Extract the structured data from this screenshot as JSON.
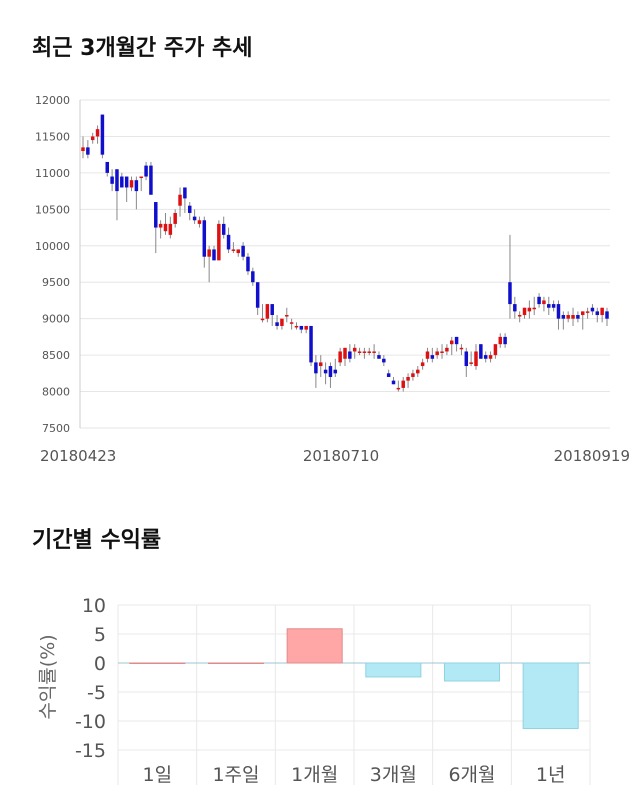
{
  "section1": {
    "title": "최근 3개월간 주가 추세"
  },
  "section2": {
    "title": "기간별 수익률"
  },
  "chart_data": [
    {
      "type": "candlestick",
      "title": "최근 3개월간 주가 추세",
      "ylim": [
        7500,
        12000
      ],
      "yticks": [
        7500,
        8000,
        8500,
        9000,
        9500,
        10000,
        10500,
        11000,
        11500,
        12000
      ],
      "xticks": [
        "20180423",
        "20180710",
        "20180919"
      ],
      "grid": true,
      "colors": {
        "up": "#dd1111",
        "down": "#1010cc",
        "wick": "#888888"
      },
      "candles": [
        [
          11300,
          11500,
          11200,
          11350
        ],
        [
          11350,
          11450,
          11200,
          11250
        ],
        [
          11450,
          11550,
          11400,
          11500
        ],
        [
          11500,
          11650,
          11400,
          11600
        ],
        [
          11800,
          11800,
          11200,
          11250
        ],
        [
          11150,
          11150,
          10950,
          11000
        ],
        [
          10950,
          11050,
          10750,
          10850
        ],
        [
          11050,
          11050,
          10350,
          10750
        ],
        [
          10950,
          11000,
          10800,
          10800
        ],
        [
          10950,
          10950,
          10600,
          10800
        ],
        [
          10800,
          10950,
          10750,
          10900
        ],
        [
          10900,
          10950,
          10500,
          10750
        ],
        [
          10950,
          10950,
          10750,
          10950
        ],
        [
          11100,
          11150,
          10900,
          10950
        ],
        [
          11100,
          11150,
          10700,
          10700
        ],
        [
          10600,
          10600,
          9900,
          10250
        ],
        [
          10250,
          10350,
          10100,
          10300
        ],
        [
          10200,
          10450,
          10150,
          10300
        ],
        [
          10150,
          10400,
          10100,
          10300
        ],
        [
          10300,
          10500,
          10250,
          10450
        ],
        [
          10550,
          10800,
          10400,
          10700
        ],
        [
          10800,
          10800,
          10450,
          10650
        ],
        [
          10550,
          10600,
          10350,
          10450
        ],
        [
          10400,
          10500,
          10300,
          10350
        ],
        [
          10300,
          10400,
          10250,
          10350
        ],
        [
          10350,
          10400,
          9700,
          9850
        ],
        [
          9850,
          10000,
          9500,
          9950
        ],
        [
          9950,
          10000,
          9800,
          9800
        ],
        [
          9800,
          10350,
          9800,
          10300
        ],
        [
          10300,
          10400,
          10100,
          10150
        ],
        [
          10150,
          10250,
          9900,
          9950
        ],
        [
          9950,
          10050,
          9900,
          9950
        ],
        [
          9900,
          9950,
          9850,
          9950
        ],
        [
          10000,
          10050,
          9800,
          9850
        ],
        [
          9850,
          9900,
          9600,
          9650
        ],
        [
          9650,
          9700,
          9450,
          9500
        ],
        [
          9500,
          9500,
          9050,
          9150
        ],
        [
          9000,
          9200,
          8950,
          9000
        ],
        [
          9000,
          9200,
          8950,
          9200
        ],
        [
          9200,
          9200,
          8900,
          9050
        ],
        [
          8950,
          9050,
          8850,
          8900
        ],
        [
          8900,
          9000,
          8850,
          9000
        ],
        [
          9050,
          9150,
          8950,
          9050
        ],
        [
          8950,
          9000,
          8850,
          8950
        ],
        [
          8900,
          8950,
          8850,
          8900
        ],
        [
          8900,
          8900,
          8800,
          8850
        ],
        [
          8850,
          8900,
          8800,
          8900
        ],
        [
          8900,
          8900,
          8350,
          8400
        ],
        [
          8400,
          8500,
          8050,
          8250
        ],
        [
          8350,
          8500,
          8200,
          8400
        ],
        [
          8300,
          8400,
          8100,
          8250
        ],
        [
          8350,
          8400,
          8050,
          8200
        ],
        [
          8300,
          8450,
          8200,
          8250
        ],
        [
          8400,
          8600,
          8350,
          8550
        ],
        [
          8450,
          8600,
          8350,
          8600
        ],
        [
          8550,
          8650,
          8400,
          8450
        ],
        [
          8550,
          8650,
          8450,
          8600
        ],
        [
          8550,
          8600,
          8500,
          8550
        ],
        [
          8550,
          8600,
          8450,
          8550
        ],
        [
          8550,
          8600,
          8500,
          8550
        ],
        [
          8550,
          8650,
          8450,
          8550
        ],
        [
          8500,
          8550,
          8450,
          8450
        ],
        [
          8450,
          8500,
          8350,
          8400
        ],
        [
          8250,
          8300,
          8200,
          8200
        ],
        [
          8150,
          8200,
          8100,
          8100
        ],
        [
          8050,
          8150,
          8000,
          8050
        ],
        [
          8050,
          8200,
          8000,
          8150
        ],
        [
          8150,
          8250,
          8050,
          8200
        ],
        [
          8200,
          8300,
          8150,
          8250
        ],
        [
          8250,
          8350,
          8200,
          8300
        ],
        [
          8350,
          8450,
          8300,
          8400
        ],
        [
          8450,
          8600,
          8400,
          8550
        ],
        [
          8500,
          8600,
          8400,
          8450
        ],
        [
          8500,
          8600,
          8450,
          8550
        ],
        [
          8550,
          8650,
          8450,
          8550
        ],
        [
          8550,
          8650,
          8500,
          8600
        ],
        [
          8650,
          8750,
          8500,
          8700
        ],
        [
          8750,
          8750,
          8550,
          8650
        ],
        [
          8600,
          8650,
          8500,
          8600
        ],
        [
          8550,
          8600,
          8200,
          8350
        ],
        [
          8400,
          8550,
          8350,
          8400
        ],
        [
          8350,
          8650,
          8300,
          8550
        ],
        [
          8650,
          8650,
          8450,
          8450
        ],
        [
          8500,
          8550,
          8400,
          8450
        ],
        [
          8450,
          8550,
          8400,
          8500
        ],
        [
          8500,
          8650,
          8450,
          8650
        ],
        [
          8650,
          8800,
          8600,
          8750
        ],
        [
          8750,
          8800,
          8600,
          8650
        ],
        [
          9500,
          10150,
          9000,
          9200
        ],
        [
          9200,
          9300,
          9000,
          9100
        ],
        [
          9050,
          9100,
          8950,
          9050
        ],
        [
          9050,
          9150,
          9000,
          9150
        ],
        [
          9100,
          9250,
          9000,
          9150
        ],
        [
          9150,
          9300,
          9050,
          9150
        ],
        [
          9300,
          9350,
          9150,
          9200
        ],
        [
          9200,
          9300,
          9100,
          9250
        ],
        [
          9200,
          9300,
          9050,
          9150
        ],
        [
          9200,
          9250,
          9100,
          9150
        ],
        [
          9200,
          9250,
          8850,
          9000
        ],
        [
          9050,
          9100,
          8850,
          9000
        ],
        [
          9000,
          9100,
          8950,
          9050
        ],
        [
          9000,
          9150,
          8900,
          9050
        ],
        [
          9050,
          9100,
          8950,
          9000
        ],
        [
          9050,
          9100,
          8850,
          9100
        ],
        [
          9100,
          9150,
          9000,
          9100
        ],
        [
          9150,
          9200,
          9050,
          9100
        ],
        [
          9100,
          9150,
          8950,
          9050
        ],
        [
          9050,
          9150,
          8950,
          9150
        ],
        [
          9100,
          9150,
          8900,
          9000
        ]
      ]
    },
    {
      "type": "bar",
      "title": "기간별 수익률",
      "ylabel": "수익률(%)",
      "categories": [
        "1일",
        "1주일",
        "1개월",
        "3개월",
        "6개월",
        "1년"
      ],
      "values": [
        0,
        0,
        5.9,
        -2.4,
        -3.1,
        -11.3
      ],
      "ylim": [
        -15,
        10
      ],
      "yticks": [
        10,
        5,
        0,
        -5,
        -10,
        -15
      ],
      "grid": true,
      "colors": {
        "positive": "#ffa7a7",
        "positive_stroke": "#e08b8b",
        "negative": "#b2e9f5",
        "negative_stroke": "#8fd3e3"
      }
    }
  ]
}
